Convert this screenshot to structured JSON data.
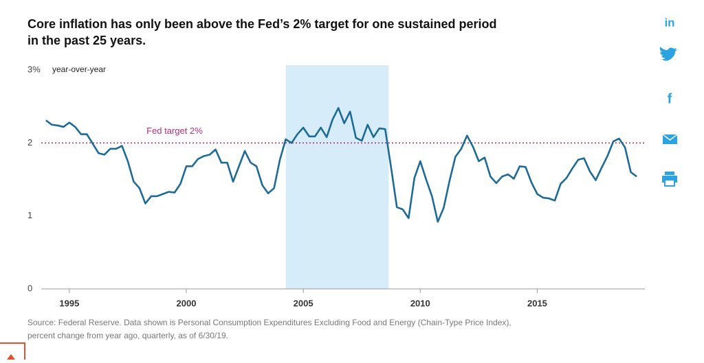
{
  "chart_data": {
    "type": "line",
    "title": [
      "Core inflation has only been above the Fed’s 2% target for one sustained period",
      "in the past 25 years."
    ],
    "y_axis_label": "year-over-year",
    "x": [
      1994,
      1994.25,
      1994.5,
      1994.75,
      1995,
      1995.25,
      1995.5,
      1995.75,
      1996,
      1996.25,
      1996.5,
      1996.75,
      1997,
      1997.25,
      1997.5,
      1997.75,
      1998,
      1998.25,
      1998.5,
      1998.75,
      1999,
      1999.25,
      1999.5,
      1999.75,
      2000,
      2000.25,
      2000.5,
      2000.75,
      2001,
      2001.25,
      2001.5,
      2001.75,
      2002,
      2002.25,
      2002.5,
      2002.75,
      2003,
      2003.25,
      2003.5,
      2003.75,
      2004,
      2004.25,
      2004.5,
      2004.75,
      2005,
      2005.25,
      2005.5,
      2005.75,
      2006,
      2006.25,
      2006.5,
      2006.75,
      2007,
      2007.25,
      2007.5,
      2007.75,
      2008,
      2008.25,
      2008.5,
      2008.75,
      2009,
      2009.25,
      2009.5,
      2009.75,
      2010,
      2010.25,
      2010.5,
      2010.75,
      2011,
      2011.25,
      2011.5,
      2011.75,
      2012,
      2012.25,
      2012.5,
      2012.75,
      2013,
      2013.25,
      2013.5,
      2013.75,
      2014,
      2014.25,
      2014.5,
      2014.75,
      2015,
      2015.25,
      2015.5,
      2015.75,
      2016,
      2016.25,
      2016.5,
      2016.75,
      2017,
      2017.25,
      2017.5,
      2017.75,
      2018,
      2018.25,
      2018.5,
      2018.75,
      2019,
      2019.25
    ],
    "series": [
      {
        "color": "#1d6a96",
        "values": [
          2.31,
          2.25,
          2.24,
          2.22,
          2.28,
          2.22,
          2.12,
          2.12,
          1.99,
          1.86,
          1.84,
          1.92,
          1.92,
          1.96,
          1.75,
          1.47,
          1.38,
          1.17,
          1.27,
          1.27,
          1.3,
          1.33,
          1.32,
          1.44,
          1.68,
          1.68,
          1.78,
          1.82,
          1.84,
          1.91,
          1.73,
          1.73,
          1.47,
          1.68,
          1.89,
          1.73,
          1.68,
          1.42,
          1.31,
          1.38,
          1.77,
          2.05,
          2.0,
          2.12,
          2.21,
          2.09,
          2.09,
          2.21,
          2.08,
          2.32,
          2.48,
          2.27,
          2.43,
          2.07,
          2.03,
          2.25,
          2.08,
          2.2,
          2.19,
          1.67,
          1.12,
          1.09,
          0.97,
          1.52,
          1.75,
          1.5,
          1.27,
          0.92,
          1.11,
          1.48,
          1.81,
          1.92,
          2.1,
          1.95,
          1.75,
          1.8,
          1.54,
          1.45,
          1.54,
          1.57,
          1.51,
          1.68,
          1.67,
          1.46,
          1.3,
          1.25,
          1.24,
          1.21,
          1.44,
          1.52,
          1.65,
          1.77,
          1.79,
          1.61,
          1.49,
          1.66,
          1.82,
          2.02,
          2.06,
          1.94,
          1.6,
          1.54
        ]
      }
    ],
    "xlim": [
      1993.8,
      2019.6
    ],
    "xticks": [
      1995,
      2000,
      2005,
      2010,
      2015
    ],
    "ylim": [
      0,
      3
    ],
    "yticks": [
      0,
      1,
      2,
      {
        "value": 3,
        "label": "3%"
      }
    ],
    "shaded_region": {
      "x": [
        2004.25,
        2008.65
      ],
      "color": "#d6ecf8"
    },
    "reference_line": {
      "value": 2,
      "label": "Fed target 2%",
      "color": "#b0307a"
    },
    "source": [
      "Source: Federal Reserve. Data shown is Personal Consumption Expenditures Excluding Food and Energy (Chain-Type Price Index),",
      "percent change from year ago, quarterly, as of 6/30/19."
    ]
  },
  "share_bar": {
    "linkedin": "in",
    "facebook": "f"
  }
}
